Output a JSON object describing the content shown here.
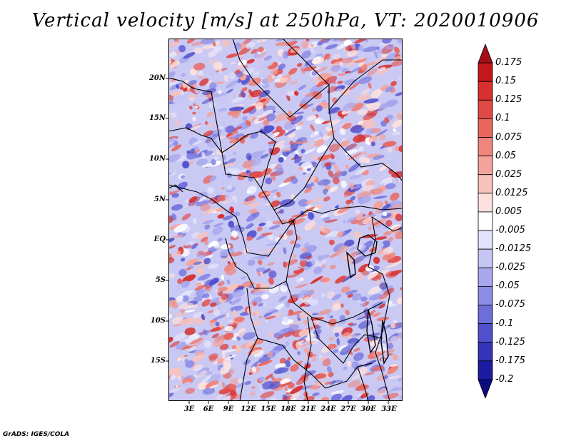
{
  "title": "Vertical velocity [m/s] at 250hPa, VT: 2020010906",
  "latitude_labels": [
    "20N",
    "15N",
    "10N",
    "5N",
    "EQ",
    "5S",
    "10S",
    "15S"
  ],
  "longitude_labels": [
    "3E",
    "6E",
    "9E",
    "12E",
    "15E",
    "18E",
    "21E",
    "24E",
    "27E",
    "30E",
    "33E"
  ],
  "colorbar": {
    "labels": [
      "0.175",
      "0.15",
      "0.125",
      "0.1",
      "0.075",
      "0.05",
      "0.025",
      "0.0125",
      "0.005",
      "-0.005",
      "-0.0125",
      "-0.025",
      "-0.05",
      "-0.075",
      "-0.1",
      "-0.125",
      "-0.175",
      "-0.2"
    ],
    "colors": [
      "#a50f15",
      "#c4161c",
      "#d7302f",
      "#e04a45",
      "#e8675f",
      "#ef857c",
      "#f4a39b",
      "#f8c2bc",
      "#fce0dd",
      "#ffffff",
      "#e2e2fb",
      "#c6c6f5",
      "#a8a8ee",
      "#8c8ce6",
      "#6e6edb",
      "#5050cc",
      "#3434b8",
      "#1c1ca0",
      "#0b0b82"
    ]
  },
  "credit": "GrADS: IGES/COLA"
}
